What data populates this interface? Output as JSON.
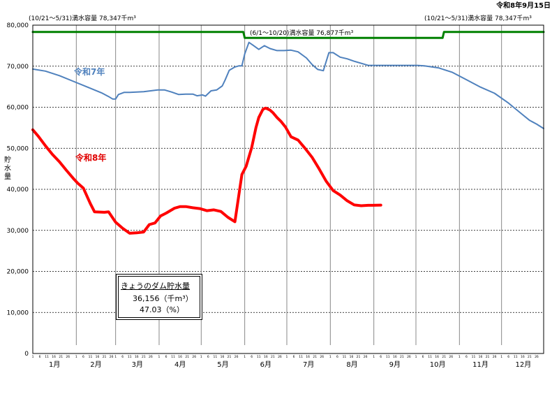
{
  "date_label": "令和8年9月15日",
  "info_box": {
    "title": "きょうのダム貯水量",
    "storage_value": "36,156",
    "storage_unit": "（千m³）",
    "rate_value": "47.03",
    "rate_unit": "（%）"
  },
  "chart_data": {
    "type": "line",
    "title": "",
    "xlabel": "",
    "ylabel": "貯水量",
    "ylim": [
      0,
      80000
    ],
    "yticks": [
      "0",
      "10,000",
      "20,000",
      "30,000",
      "40,000",
      "50,000",
      "60,000",
      "70,000",
      "80,000"
    ],
    "yticks_values": [
      0,
      10000,
      20000,
      30000,
      40000,
      50000,
      60000,
      70000,
      80000
    ],
    "x_unit": "day_of_year",
    "xlim": [
      1,
      365
    ],
    "months": [
      "1月",
      "2月",
      "3月",
      "4月",
      "5月",
      "6月",
      "7月",
      "8月",
      "9月",
      "10月",
      "11月",
      "12月"
    ],
    "month_starts": [
      1,
      32,
      60,
      91,
      121,
      152,
      182,
      213,
      244,
      274,
      305,
      335
    ],
    "day_ticks": [
      "1",
      "6",
      "11",
      "16",
      "21",
      "26"
    ],
    "grid": true,
    "series": [
      {
        "name": "令和7年",
        "color": "#4f81bd",
        "x": [
          1,
          10,
          20,
          30,
          40,
          50,
          55,
          58,
          60,
          62,
          66,
          70,
          80,
          90,
          95,
          100,
          105,
          110,
          115,
          118,
          122,
          124,
          128,
          132,
          136,
          138,
          141,
          145,
          148,
          150,
          152,
          155,
          158,
          162,
          166,
          170,
          175,
          180,
          185,
          190,
          196,
          200,
          204,
          208,
          212,
          215,
          220,
          225,
          230,
          240,
          250,
          260,
          270,
          275,
          280,
          290,
          300,
          310,
          320,
          330,
          340,
          350,
          355,
          360,
          365
        ],
        "y": [
          69300,
          68800,
          67700,
          66300,
          64900,
          63500,
          62600,
          62000,
          62000,
          63100,
          63600,
          63600,
          63800,
          64200,
          64200,
          63700,
          63100,
          63200,
          63200,
          62800,
          63000,
          62700,
          64000,
          64200,
          65200,
          66600,
          69000,
          69800,
          70100,
          70100,
          73000,
          75800,
          75100,
          74100,
          75000,
          74300,
          73800,
          73800,
          73900,
          73500,
          72000,
          70400,
          69200,
          68900,
          73300,
          73300,
          72200,
          71800,
          71200,
          70200,
          70200,
          70200,
          70200,
          70200,
          70100,
          69600,
          68500,
          66700,
          64900,
          63400,
          61000,
          58200,
          56800,
          55900,
          54800
        ]
      },
      {
        "name": "令和8年",
        "color": "#ff0000",
        "x": [
          1,
          5,
          10,
          15,
          20,
          25,
          30,
          33,
          37,
          42,
          45,
          52,
          55,
          60,
          65,
          70,
          75,
          80,
          84,
          88,
          92,
          96,
          102,
          106,
          110,
          115,
          120,
          125,
          130,
          135,
          140,
          145,
          150,
          153,
          157,
          160,
          162,
          165,
          167,
          170,
          172,
          175,
          178,
          181,
          185,
          190,
          195,
          200,
          205,
          210,
          215,
          220,
          225,
          230,
          235,
          240,
          243,
          249
        ],
        "y": [
          54500,
          52900,
          50600,
          48500,
          46700,
          44600,
          42600,
          41500,
          40300,
          36500,
          34500,
          34400,
          34500,
          32000,
          30500,
          29300,
          29400,
          29600,
          31400,
          31800,
          33500,
          34200,
          35400,
          35800,
          35800,
          35500,
          35300,
          34800,
          35000,
          34600,
          33200,
          32100,
          43600,
          45600,
          50200,
          55000,
          57500,
          59500,
          59800,
          59300,
          58700,
          57500,
          56500,
          55200,
          52800,
          52000,
          50000,
          47800,
          45000,
          42000,
          39700,
          38600,
          37200,
          36200,
          36000,
          36100,
          36100,
          36156
        ]
      },
      {
        "name": "満水容量",
        "color": "#008000",
        "x": [
          1,
          151,
          152,
          293,
          294,
          365
        ],
        "y": [
          78347,
          78347,
          76877,
          76877,
          78347,
          78347
        ]
      }
    ],
    "annotations": [
      {
        "text": "(10/21～5/31)満水容量 78,347千m³"
      },
      {
        "text": "(6/1～10/20)満水容量 76,877千m³"
      },
      {
        "text": "(10/21～5/31)満水容量 78,347千m³"
      }
    ]
  }
}
